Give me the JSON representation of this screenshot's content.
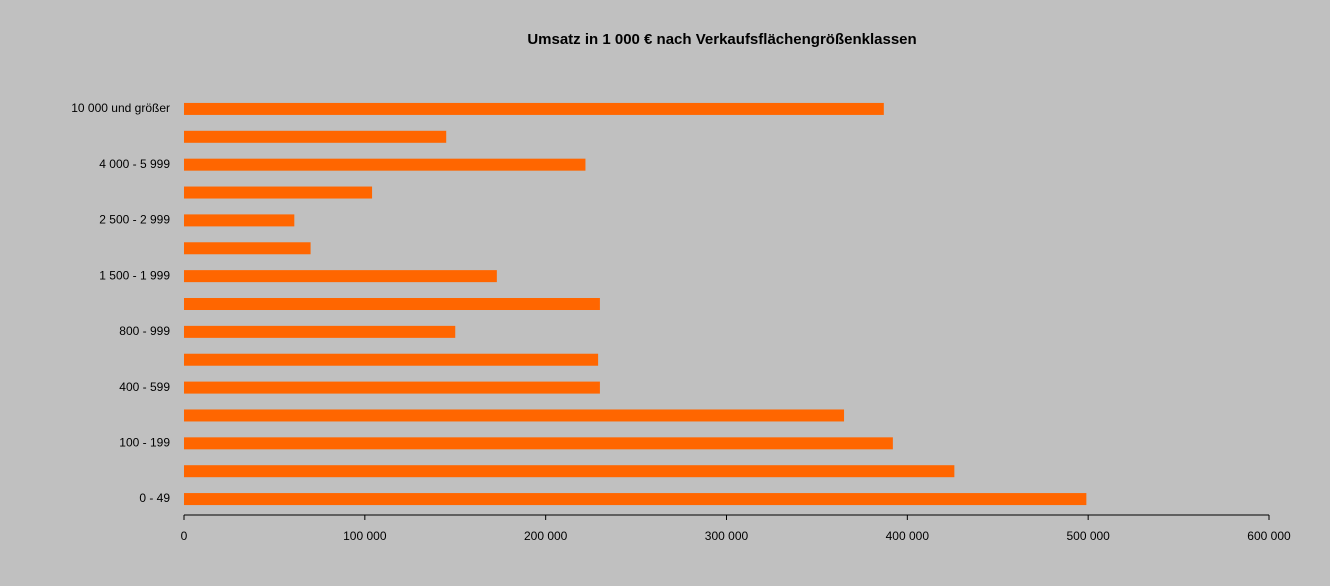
{
  "chart_data": {
    "type": "bar",
    "orientation": "horizontal",
    "title": "Umsatz in 1 000 € nach Verkaufsflächengrößenklassen",
    "categories": [
      "0 - 49",
      null,
      "100 - 199",
      null,
      "400 - 599",
      null,
      "800 - 999",
      null,
      "1 500 - 1 999",
      null,
      "2 500 - 2 999",
      null,
      "4 000 - 5 999",
      null,
      "10 000 und größer"
    ],
    "values": [
      499000,
      426000,
      392000,
      365000,
      230000,
      229000,
      150000,
      230000,
      173000,
      70000,
      61000,
      104000,
      222000,
      145000,
      387000
    ],
    "color": "#ff6600",
    "xlim": [
      0,
      600000
    ],
    "xticks": [
      0,
      {
        "value": 100000,
        "label": "100 000"
      },
      {
        "value": 200000,
        "label": "200 000"
      },
      {
        "value": 300000,
        "label": "300 000"
      },
      {
        "value": 400000,
        "label": "400 000"
      },
      {
        "value": 500000,
        "label": "500 000"
      },
      {
        "value": 600000,
        "label": "600 000"
      }
    ]
  }
}
